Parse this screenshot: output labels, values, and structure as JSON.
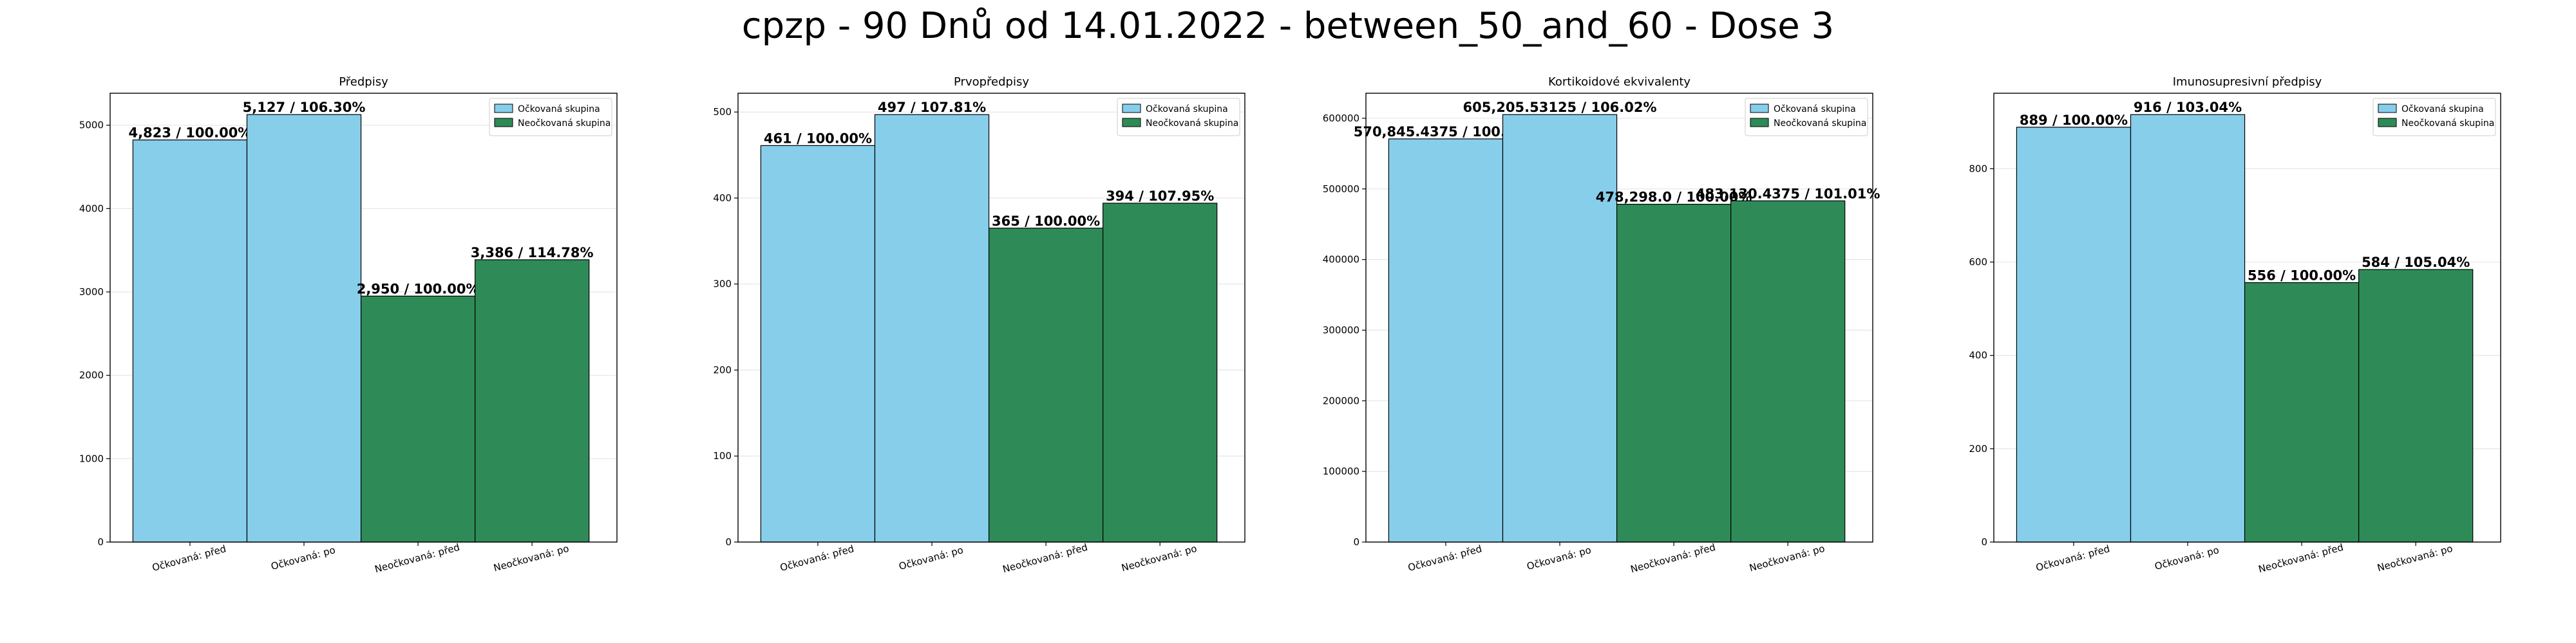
{
  "suptitle": "cpzp - 90 Dnů od 14.01.2022 - between_50_and_60 - Dose 3",
  "colors": {
    "vaccinated": "#87CEEB",
    "unvaccinated": "#2E8B57",
    "edge": "#000000"
  },
  "legend": {
    "items": [
      "Očkovaná skupina",
      "Neočkovaná skupina"
    ],
    "position": "top-right"
  },
  "chart_data": [
    {
      "type": "bar",
      "title": "Předpisy",
      "categories": [
        "Očkovaná: před",
        "Očkovaná: po",
        "Neočkovaná: před",
        "Neočkovaná: po"
      ],
      "values": [
        4823,
        5127,
        2950,
        3386
      ],
      "labels": [
        "4,823 / 100.00%",
        "5,127 / 106.30%",
        "2,950 / 100.00%",
        "3,386 / 114.78%"
      ],
      "groups": [
        "vaccinated",
        "vaccinated",
        "unvaccinated",
        "unvaccinated"
      ],
      "ylim": [
        0,
        5383
      ],
      "yticks": [
        0,
        1000,
        2000,
        3000,
        4000,
        5000
      ],
      "ytick_labels": [
        "0",
        "1000",
        "2000",
        "3000",
        "4000",
        "5000"
      ],
      "grid": true
    },
    {
      "type": "bar",
      "title": "Prvopředpisy",
      "categories": [
        "Očkovaná: před",
        "Očkovaná: po",
        "Neočkovaná: před",
        "Neočkovaná: po"
      ],
      "values": [
        461,
        497,
        365,
        394
      ],
      "labels": [
        "461 / 100.00%",
        "497 / 107.81%",
        "365 / 100.00%",
        "394 / 107.95%"
      ],
      "groups": [
        "vaccinated",
        "vaccinated",
        "unvaccinated",
        "unvaccinated"
      ],
      "ylim": [
        0,
        521.85
      ],
      "yticks": [
        0,
        100,
        200,
        300,
        400,
        500
      ],
      "ytick_labels": [
        "0",
        "100",
        "200",
        "300",
        "400",
        "500"
      ],
      "grid": true
    },
    {
      "type": "bar",
      "title": "Kortikoidové ekvivalenty",
      "categories": [
        "Očkovaná: před",
        "Očkovaná: po",
        "Neočkovaná: před",
        "Neočkovaná: po"
      ],
      "values": [
        570845.4375,
        605205.53125,
        478298.0,
        483130.4375
      ],
      "labels": [
        "570,845.4375 / 100.00%",
        "605,205.53125 / 106.02%",
        "478,298.0 / 100.00%",
        "483,130.4375 / 101.01%"
      ],
      "groups": [
        "vaccinated",
        "vaccinated",
        "unvaccinated",
        "unvaccinated"
      ],
      "ylim": [
        0,
        635465.8
      ],
      "yticks": [
        0,
        100000,
        200000,
        300000,
        400000,
        500000,
        600000
      ],
      "ytick_labels": [
        "0",
        "100000",
        "200000",
        "300000",
        "400000",
        "500000",
        "600000"
      ],
      "grid": true
    },
    {
      "type": "bar",
      "title": "Imunosupresivní předpisy",
      "categories": [
        "Očkovaná: před",
        "Očkovaná: po",
        "Neočkovaná: před",
        "Neočkovaná: po"
      ],
      "values": [
        889,
        916,
        556,
        584
      ],
      "labels": [
        "889 / 100.00%",
        "916 / 103.04%",
        "556 / 100.00%",
        "584 / 105.04%"
      ],
      "groups": [
        "vaccinated",
        "vaccinated",
        "unvaccinated",
        "unvaccinated"
      ],
      "ylim": [
        0,
        961.8
      ],
      "yticks": [
        0,
        200,
        400,
        600,
        800
      ],
      "ytick_labels": [
        "0",
        "200",
        "400",
        "600",
        "800"
      ],
      "grid": true
    }
  ]
}
